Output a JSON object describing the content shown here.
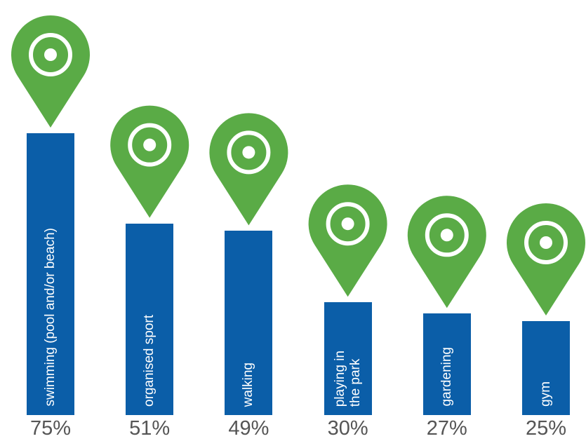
{
  "chart_data": {
    "type": "bar",
    "categories": [
      "swimming (pool and/or beach)",
      "organised sport",
      "walking",
      "playing in\nthe park",
      "gardening",
      "gym"
    ],
    "values": [
      75,
      51,
      49,
      30,
      27,
      25
    ],
    "value_labels": [
      "75%",
      "51%",
      "49%",
      "30%",
      "27%",
      "25%"
    ],
    "color": "#0b5ea8",
    "icon_color": "#5aab46"
  }
}
